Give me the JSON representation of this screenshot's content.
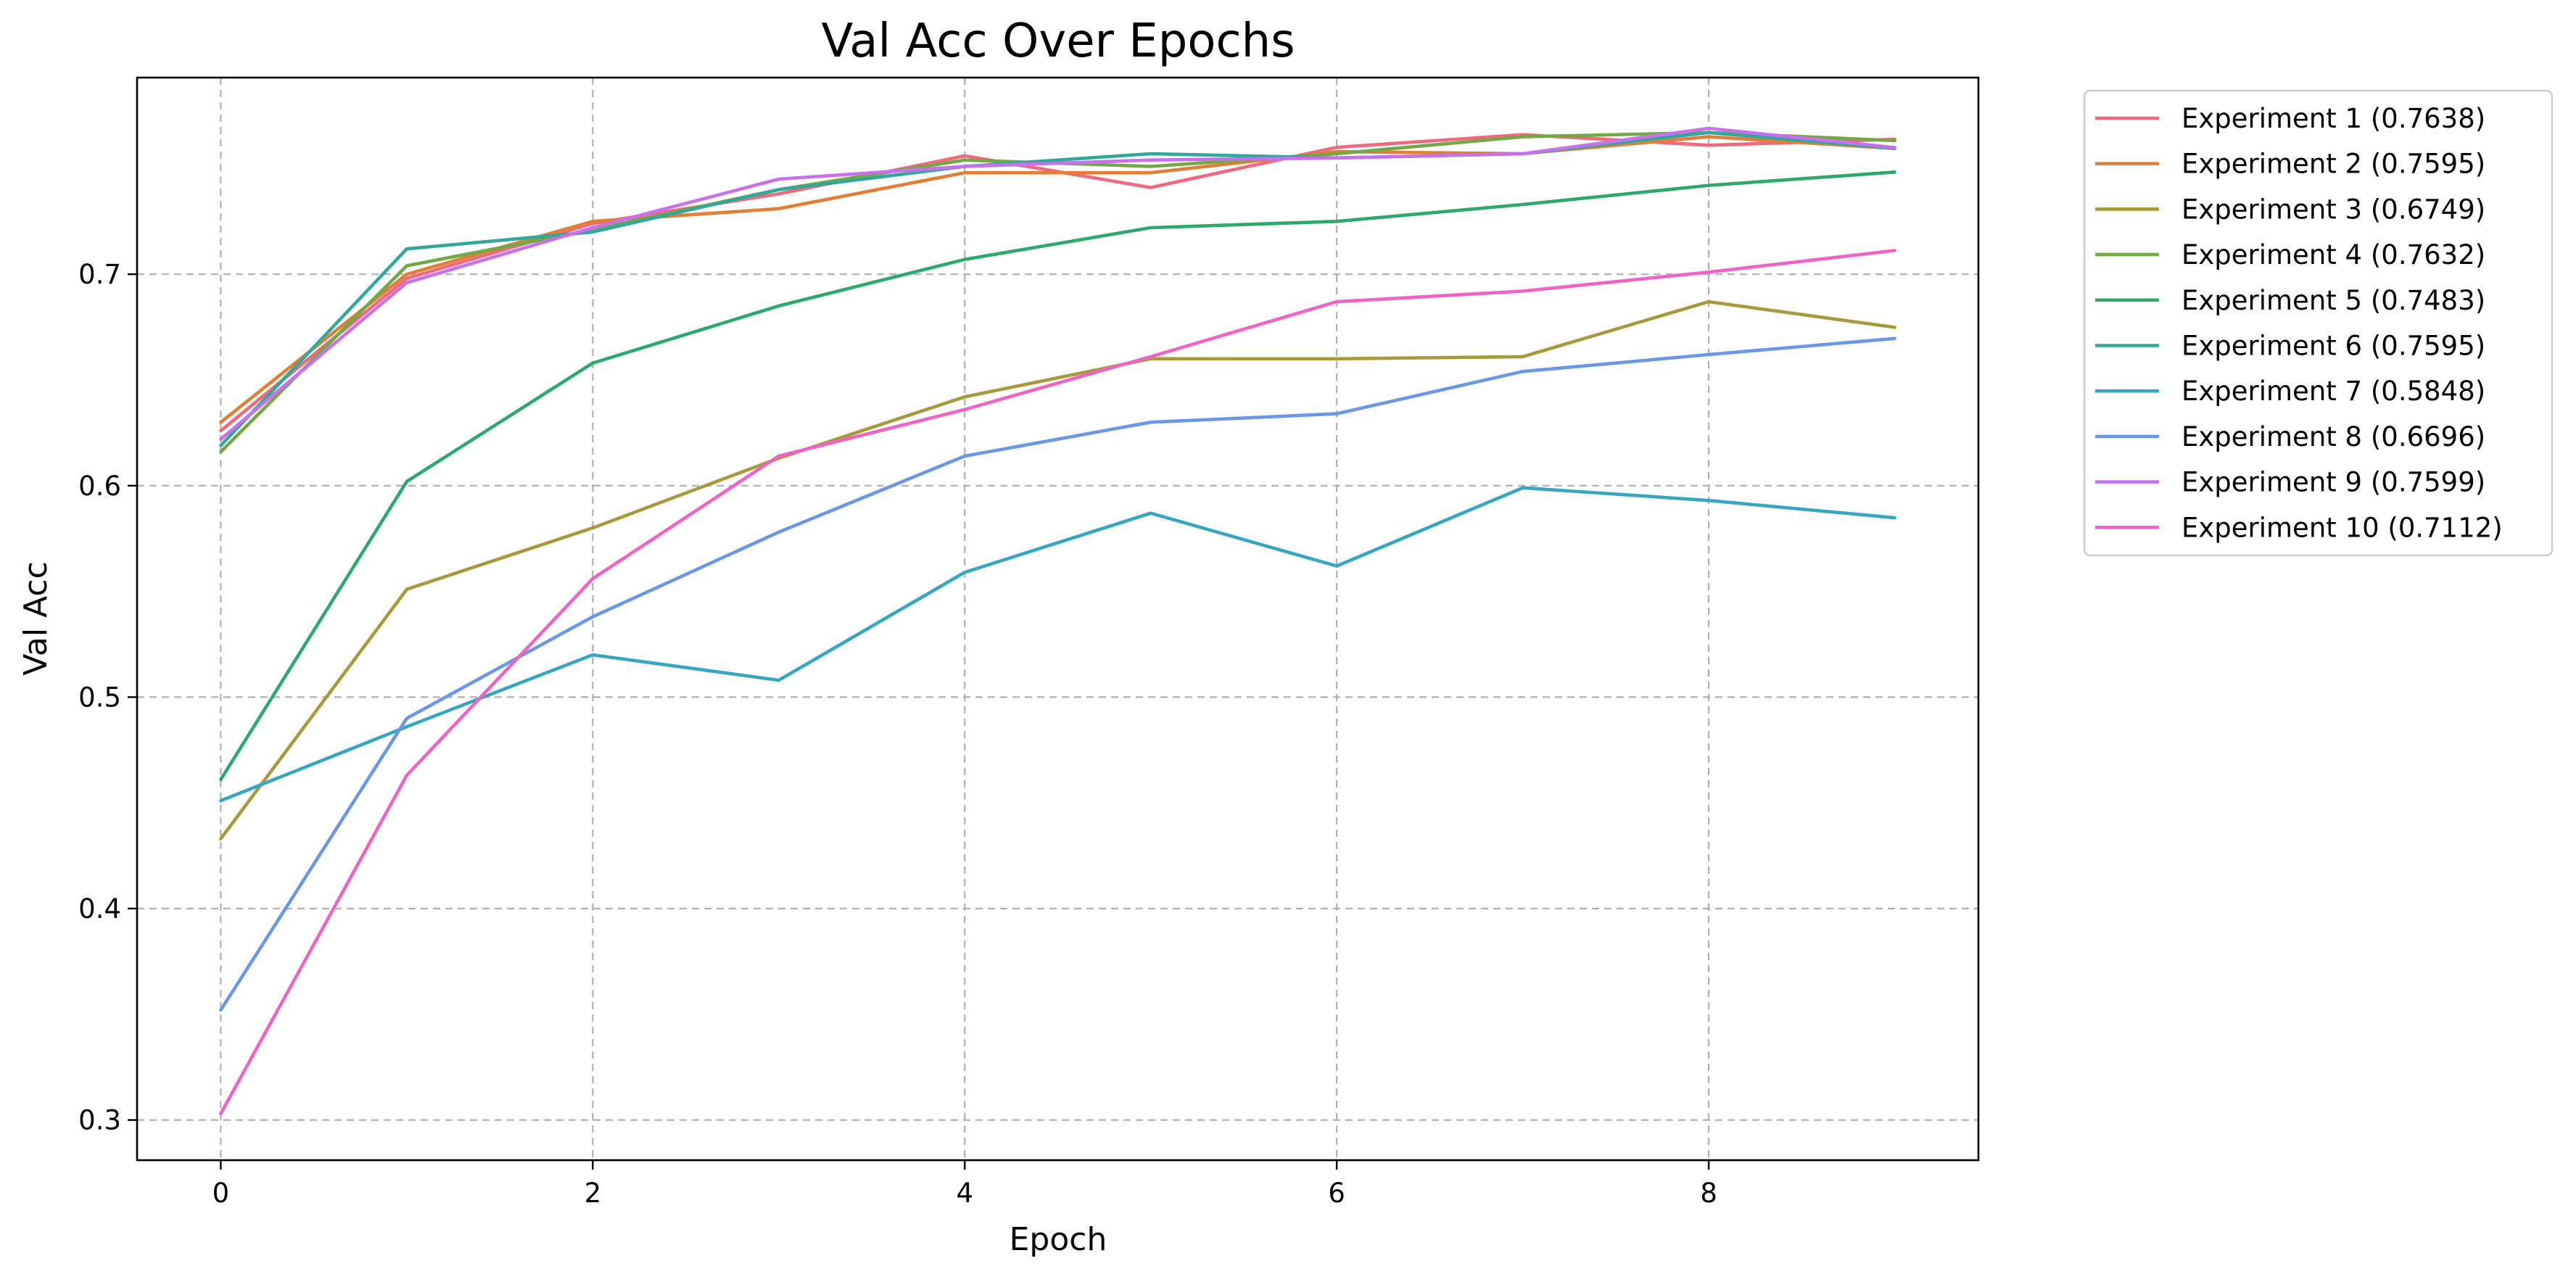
{
  "chart_data": {
    "type": "line",
    "title": "Val Acc Over Epochs",
    "xlabel": "Epoch",
    "ylabel": "Val Acc",
    "xlim": [
      -0.45,
      9.45
    ],
    "ylim": [
      0.281,
      0.793
    ],
    "xticks": [
      0,
      2,
      4,
      6,
      8
    ],
    "yticks": [
      0.3,
      0.4,
      0.5,
      0.6,
      0.7
    ],
    "grid": true,
    "legend_position": "outside-top-right",
    "x": [
      0,
      1,
      2,
      3,
      4,
      5,
      6,
      7,
      8,
      9
    ],
    "series": [
      {
        "name": "Experiment 1 (0.7638)",
        "color": "#f0697f",
        "values": [
          0.626,
          0.698,
          0.724,
          0.738,
          0.756,
          0.741,
          0.76,
          0.766,
          0.761,
          0.7638
        ]
      },
      {
        "name": "Experiment 2 (0.7595)",
        "color": "#e07f35",
        "values": [
          0.63,
          0.7,
          0.725,
          0.731,
          0.748,
          0.748,
          0.758,
          0.757,
          0.765,
          0.7595
        ]
      },
      {
        "name": "Experiment 3 (0.6749)",
        "color": "#a89a3c",
        "values": [
          0.433,
          0.551,
          0.58,
          0.613,
          0.642,
          0.66,
          0.66,
          0.661,
          0.687,
          0.6749
        ]
      },
      {
        "name": "Experiment 4 (0.7632)",
        "color": "#72a845",
        "values": [
          0.616,
          0.704,
          0.721,
          0.74,
          0.754,
          0.751,
          0.757,
          0.765,
          0.767,
          0.7632
        ]
      },
      {
        "name": "Experiment 5 (0.7483)",
        "color": "#2ea96d",
        "values": [
          0.461,
          0.602,
          0.658,
          0.685,
          0.707,
          0.722,
          0.725,
          0.733,
          0.742,
          0.7483
        ]
      },
      {
        "name": "Experiment 6 (0.7595)",
        "color": "#33a89a",
        "values": [
          0.619,
          0.712,
          0.72,
          0.74,
          0.751,
          0.757,
          0.755,
          0.757,
          0.767,
          0.7595
        ]
      },
      {
        "name": "Experiment 7 (0.5848)",
        "color": "#37a6c2",
        "values": [
          0.451,
          0.486,
          0.52,
          0.508,
          0.559,
          0.587,
          0.562,
          0.599,
          0.593,
          0.5848
        ]
      },
      {
        "name": "Experiment 8 (0.6696)",
        "color": "#6a97e6",
        "values": [
          0.352,
          0.49,
          0.538,
          0.578,
          0.614,
          0.63,
          0.634,
          0.654,
          0.662,
          0.6696
        ]
      },
      {
        "name": "Experiment 9 (0.7599)",
        "color": "#c772ec",
        "values": [
          0.622,
          0.696,
          0.722,
          0.745,
          0.751,
          0.754,
          0.755,
          0.757,
          0.769,
          0.7599
        ]
      },
      {
        "name": "Experiment 10 (0.7112)",
        "color": "#ee63c6",
        "values": [
          0.303,
          0.463,
          0.556,
          0.614,
          0.636,
          0.661,
          0.687,
          0.692,
          0.701,
          0.7112
        ]
      }
    ]
  }
}
